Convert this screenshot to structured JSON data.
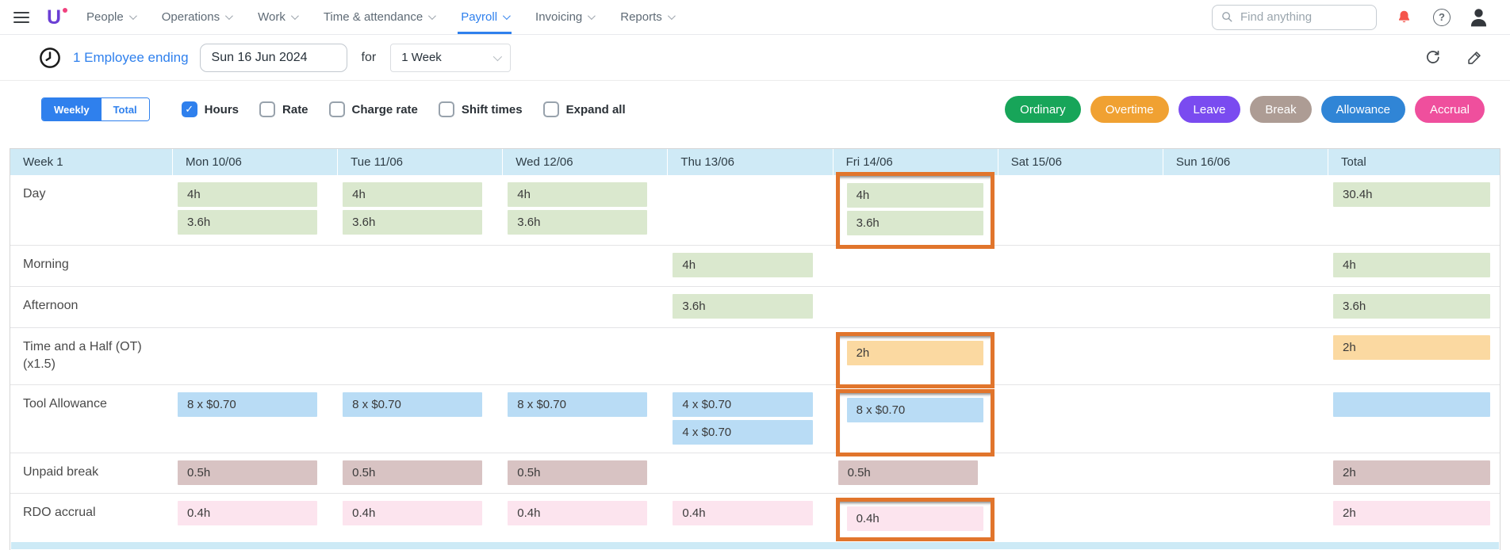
{
  "nav": {
    "items": [
      {
        "label": "People",
        "active": false
      },
      {
        "label": "Operations",
        "active": false
      },
      {
        "label": "Work",
        "active": false
      },
      {
        "label": "Time & attendance",
        "active": false
      },
      {
        "label": "Payroll",
        "active": true
      },
      {
        "label": "Invoicing",
        "active": false
      },
      {
        "label": "Reports",
        "active": false
      }
    ],
    "search_placeholder": "Find anything"
  },
  "toolbar": {
    "employee_link": "1 Employee ending",
    "date_value": "Sun 16 Jun 2024",
    "for_label": "for",
    "period_value": "1 Week"
  },
  "filters": {
    "weekly_label": "Weekly",
    "total_label": "Total",
    "checkboxes": [
      {
        "label": "Hours",
        "checked": true
      },
      {
        "label": "Rate",
        "checked": false
      },
      {
        "label": "Charge rate",
        "checked": false
      },
      {
        "label": "Shift times",
        "checked": false
      },
      {
        "label": "Expand all",
        "checked": false
      }
    ]
  },
  "legend": [
    {
      "label": "Ordinary",
      "type": "ordinary"
    },
    {
      "label": "Overtime",
      "type": "overtime"
    },
    {
      "label": "Leave",
      "type": "leave"
    },
    {
      "label": "Break",
      "type": "break"
    },
    {
      "label": "Allowance",
      "type": "allowance"
    },
    {
      "label": "Accrual",
      "type": "accrual"
    }
  ],
  "colors": {
    "ordinary": {
      "pill": "#17a559",
      "chip": "#dae8ce"
    },
    "overtime": {
      "pill": "#f0a132",
      "chip": "#fbd9a1"
    },
    "leave": {
      "pill": "#7a4bf0",
      "chip": "#e4dbfa"
    },
    "break": {
      "pill": "#ad9c94",
      "chip": "#d8c3c3"
    },
    "allowance": {
      "pill": "#3085d6",
      "chip": "#b9dcf5"
    },
    "accrual": {
      "pill": "#ef4f9d",
      "chip": "#fce4ee"
    },
    "highlight": "#e1752c",
    "accent": "#2f80ed",
    "header_bg": "#cfeaf6",
    "bell": "#f5554b"
  },
  "table": {
    "columns": [
      "Week 1",
      "Mon 10/06",
      "Tue 11/06",
      "Wed 12/06",
      "Thu 13/06",
      "Fri 14/06",
      "Sat 15/06",
      "Sun 16/06",
      "Total"
    ],
    "day_keys": [
      "mon",
      "tue",
      "wed",
      "thu",
      "fri",
      "sat",
      "sun"
    ],
    "rows": [
      {
        "label": "Day",
        "type": "ordinary",
        "highlight": "fri",
        "cells": {
          "mon": [
            "4h",
            "3.6h"
          ],
          "tue": [
            "4h",
            "3.6h"
          ],
          "wed": [
            "4h",
            "3.6h"
          ],
          "fri": [
            "4h",
            "3.6h"
          ]
        },
        "total": [
          "30.4h"
        ]
      },
      {
        "label": "Morning",
        "type": "ordinary",
        "cells": {
          "thu": [
            "4h"
          ]
        },
        "total": [
          "4h"
        ]
      },
      {
        "label": "Afternoon",
        "type": "ordinary",
        "cells": {
          "thu": [
            "3.6h"
          ]
        },
        "total": [
          "3.6h"
        ]
      },
      {
        "label": "Time and a Half (OT)(x1.5)",
        "type": "overtime",
        "highlight": "fri",
        "cells": {
          "fri": [
            "2h"
          ]
        },
        "total": [
          "2h"
        ]
      },
      {
        "label": "Tool Allowance",
        "type": "allowance",
        "highlight": "fri",
        "cells": {
          "mon": [
            "8 x $0.70"
          ],
          "tue": [
            "8 x $0.70"
          ],
          "wed": [
            "8 x $0.70"
          ],
          "thu": [
            "4 x $0.70",
            "4 x $0.70"
          ],
          "fri": [
            "8 x $0.70"
          ]
        },
        "total": [
          ""
        ]
      },
      {
        "label": "Unpaid break",
        "type": "break",
        "cells": {
          "mon": [
            "0.5h"
          ],
          "tue": [
            "0.5h"
          ],
          "wed": [
            "0.5h"
          ],
          "fri": [
            "0.5h"
          ]
        },
        "total": [
          "2h"
        ]
      },
      {
        "label": "RDO accrual",
        "type": "accrual",
        "highlight": "fri",
        "cells": {
          "mon": [
            "0.4h"
          ],
          "tue": [
            "0.4h"
          ],
          "wed": [
            "0.4h"
          ],
          "thu": [
            "0.4h"
          ],
          "fri": [
            "0.4h"
          ]
        },
        "total": [
          "2h"
        ]
      }
    ]
  }
}
